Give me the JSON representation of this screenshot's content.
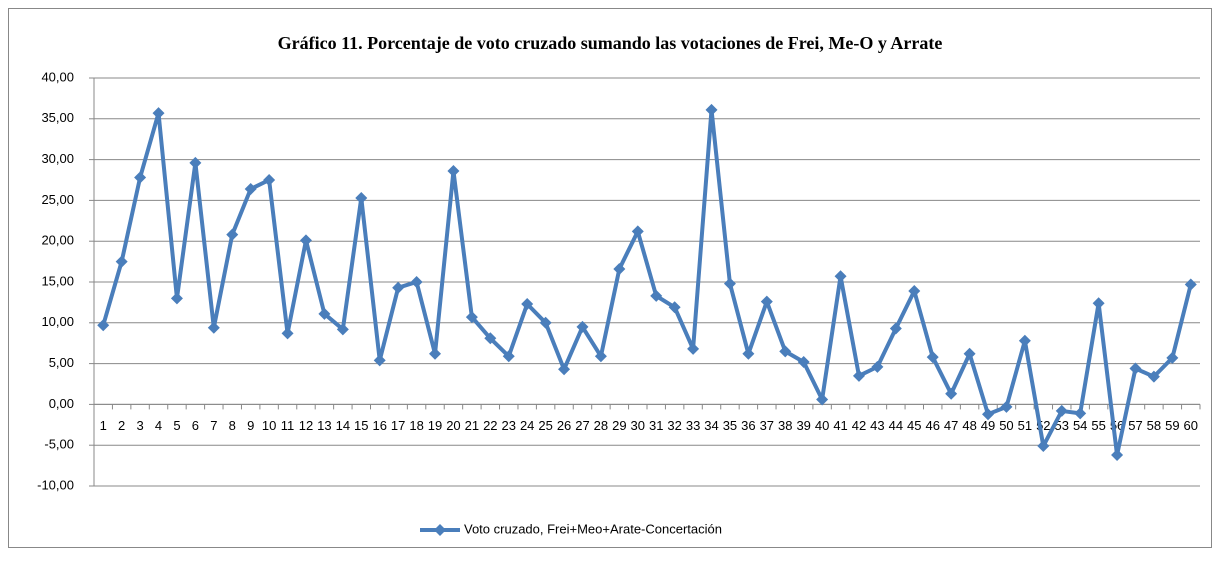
{
  "chart_data": {
    "type": "line",
    "title": "Gráfico 11. Porcentaje de voto cruzado sumando las votaciones de Frei, Me-O y Arrate",
    "categories": [
      "1",
      "2",
      "3",
      "4",
      "5",
      "6",
      "7",
      "8",
      "9",
      "10",
      "11",
      "12",
      "13",
      "14",
      "15",
      "16",
      "17",
      "18",
      "19",
      "20",
      "21",
      "22",
      "23",
      "24",
      "25",
      "26",
      "27",
      "28",
      "29",
      "30",
      "31",
      "32",
      "33",
      "34",
      "35",
      "36",
      "37",
      "38",
      "39",
      "40",
      "41",
      "42",
      "43",
      "44",
      "45",
      "46",
      "47",
      "48",
      "49",
      "50",
      "51",
      "52",
      "53",
      "54",
      "55",
      "56",
      "57",
      "58",
      "59",
      "60"
    ],
    "series": [
      {
        "name": "Voto cruzado, Frei+Meo+Arate-Concertación",
        "color": "#4a7ebb",
        "values": [
          9.7,
          17.5,
          27.8,
          35.7,
          13.0,
          29.6,
          9.4,
          20.8,
          26.4,
          27.5,
          8.7,
          20.1,
          11.1,
          9.2,
          25.3,
          5.4,
          14.3,
          15.0,
          6.2,
          28.6,
          10.7,
          8.1,
          5.9,
          12.3,
          10.0,
          4.3,
          9.5,
          5.9,
          16.6,
          21.2,
          13.3,
          11.9,
          6.8,
          36.1,
          14.8,
          6.2,
          12.6,
          6.5,
          5.2,
          0.6,
          15.7,
          3.5,
          4.6,
          9.3,
          13.9,
          5.8,
          1.3,
          6.2,
          -1.2,
          -0.3,
          7.8,
          -5.1,
          -0.8,
          -1.1,
          12.4,
          -6.2,
          4.4,
          3.4,
          5.7,
          14.7
        ]
      }
    ],
    "ylim": [
      -10,
      40
    ],
    "yticks": [
      {
        "value": -10,
        "label": "-10,00"
      },
      {
        "value": -5,
        "label": "-5,00"
      },
      {
        "value": 0,
        "label": "0,00"
      },
      {
        "value": 5,
        "label": "5,00"
      },
      {
        "value": 10,
        "label": "10,00"
      },
      {
        "value": 15,
        "label": "15,00"
      },
      {
        "value": 20,
        "label": "20,00"
      },
      {
        "value": 25,
        "label": "25,00"
      },
      {
        "value": 30,
        "label": "30,00"
      },
      {
        "value": 35,
        "label": "35,00"
      },
      {
        "value": 40,
        "label": "40,00"
      }
    ],
    "grid": true,
    "legend": "bottom"
  }
}
